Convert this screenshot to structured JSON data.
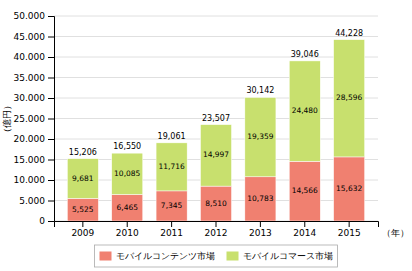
{
  "chart_data": {
    "type": "bar",
    "stacked": true,
    "categories": [
      "2009",
      "2010",
      "2011",
      "2012",
      "2013",
      "2014",
      "2015"
    ],
    "series": [
      {
        "name": "モバイルコンテンツ市場",
        "color": "#f08070",
        "values": [
          5525,
          6465,
          7345,
          8510,
          10783,
          14566,
          15632
        ],
        "value_labels": [
          "5,525",
          "6,465",
          "7,345",
          "8,510",
          "10,783",
          "14,566",
          "15,632"
        ]
      },
      {
        "name": "モバイルコマース市場",
        "color": "#c8e06e",
        "values": [
          9681,
          10085,
          11716,
          14997,
          19359,
          24480,
          28596
        ],
        "value_labels": [
          "9,681",
          "10,085",
          "11,716",
          "14,997",
          "19,359",
          "24,480",
          "28,596"
        ]
      }
    ],
    "totals": [
      15206,
      16550,
      19061,
      23507,
      30142,
      39046,
      44228
    ],
    "total_labels": [
      "15,206",
      "16,550",
      "19,061",
      "23,507",
      "30,142",
      "39,046",
      "44,228"
    ],
    "ylabel": "（億円）",
    "xlabel": "（年）",
    "ylim": [
      0,
      50000
    ],
    "yticks": [
      0,
      {
        "value": 5000,
        "label": "5.000"
      },
      {
        "value": 10000,
        "label": "10.000"
      },
      {
        "value": 15000,
        "label": "15.000"
      },
      {
        "value": 20000,
        "label": "20.000"
      },
      {
        "value": 25000,
        "label": "25.000"
      },
      {
        "value": 30000,
        "label": "30.000"
      },
      {
        "value": 35000,
        "label": "35.000"
      },
      {
        "value": 40000,
        "label": "40.000"
      },
      {
        "value": 45000,
        "label": "45.000"
      },
      {
        "value": 50000,
        "label": "50.000"
      }
    ],
    "grid": true,
    "legend": "bottom",
    "data_labels": true
  }
}
